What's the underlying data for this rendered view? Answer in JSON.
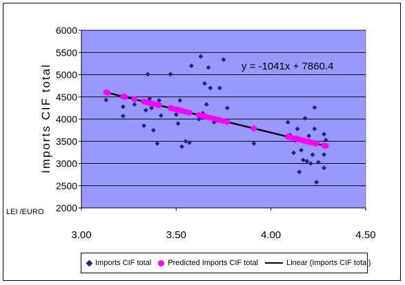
{
  "chart_data": {
    "type": "scatter",
    "xlabel": "LEI /EURO",
    "ylabel": "Imports CIF total",
    "xlim": [
      3.0,
      4.5
    ],
    "ylim": [
      2000,
      6000
    ],
    "x_ticks": [
      "3.00",
      "3.50",
      "4.00",
      "4.50"
    ],
    "y_ticks": [
      "2000",
      "2500",
      "3000",
      "3500",
      "4000",
      "4500",
      "5000",
      "5500",
      "6000"
    ],
    "equation": "y = -1041x + 7860.4",
    "legend": "bottom",
    "grid": "horizontal",
    "plot_bg": "#9999ff",
    "colors": {
      "actual": "#1f2a7a",
      "predicted": "#ff00ff",
      "trend": "#000000"
    },
    "series": [
      {
        "name": "Imports CIF total",
        "marker": "diamond",
        "points": [
          [
            3.13,
            4430
          ],
          [
            3.13,
            4620
          ],
          [
            3.22,
            4280
          ],
          [
            3.22,
            4070
          ],
          [
            3.23,
            4520
          ],
          [
            3.28,
            4330
          ],
          [
            3.33,
            3850
          ],
          [
            3.34,
            4200
          ],
          [
            3.35,
            5010
          ],
          [
            3.36,
            4460
          ],
          [
            3.37,
            4250
          ],
          [
            3.38,
            3750
          ],
          [
            3.4,
            3450
          ],
          [
            3.41,
            4420
          ],
          [
            3.42,
            4080
          ],
          [
            3.47,
            5010
          ],
          [
            3.48,
            4250
          ],
          [
            3.5,
            4100
          ],
          [
            3.51,
            3900
          ],
          [
            3.52,
            4420
          ],
          [
            3.53,
            3380
          ],
          [
            3.55,
            3500
          ],
          [
            3.57,
            3470
          ],
          [
            3.58,
            5200
          ],
          [
            3.62,
            4000
          ],
          [
            3.63,
            5410
          ],
          [
            3.64,
            4130
          ],
          [
            3.65,
            4800
          ],
          [
            3.66,
            4330
          ],
          [
            3.67,
            5160
          ],
          [
            3.68,
            4700
          ],
          [
            3.7,
            3930
          ],
          [
            3.72,
            4000
          ],
          [
            3.73,
            4700
          ],
          [
            3.75,
            5340
          ],
          [
            3.77,
            4250
          ],
          [
            3.91,
            3450
          ],
          [
            4.09,
            3930
          ],
          [
            4.1,
            3640
          ],
          [
            4.12,
            3240
          ],
          [
            4.13,
            3520
          ],
          [
            4.14,
            3780
          ],
          [
            4.15,
            2810
          ],
          [
            4.16,
            3300
          ],
          [
            4.17,
            3080
          ],
          [
            4.18,
            4020
          ],
          [
            4.19,
            3050
          ],
          [
            4.2,
            3620
          ],
          [
            4.21,
            3000
          ],
          [
            4.22,
            3200
          ],
          [
            4.23,
            3780
          ],
          [
            4.23,
            4260
          ],
          [
            4.24,
            2580
          ],
          [
            4.25,
            3030
          ],
          [
            4.28,
            3660
          ],
          [
            4.28,
            3200
          ],
          [
            4.28,
            2900
          ],
          [
            4.29,
            3530
          ]
        ]
      },
      {
        "name": "Predicted Imports CIF total",
        "marker": "circle",
        "x": [
          3.13,
          3.14,
          3.22,
          3.23,
          3.28,
          3.33,
          3.34,
          3.35,
          3.36,
          3.37,
          3.38,
          3.4,
          3.41,
          3.47,
          3.48,
          3.5,
          3.51,
          3.52,
          3.53,
          3.55,
          3.57,
          3.62,
          3.63,
          3.64,
          3.65,
          3.66,
          3.68,
          3.7,
          3.72,
          3.73,
          3.75,
          3.77,
          3.91,
          4.09,
          4.1,
          4.12,
          4.13,
          4.14,
          4.15,
          4.17,
          4.18,
          4.19,
          4.2,
          4.21,
          4.22,
          4.23,
          4.24,
          4.28,
          4.29
        ]
      },
      {
        "name": "Linear (Imports CIF total)",
        "marker": "line",
        "slope": -1041,
        "intercept": 7860.4,
        "x_range": [
          3.13,
          4.29
        ]
      }
    ]
  }
}
